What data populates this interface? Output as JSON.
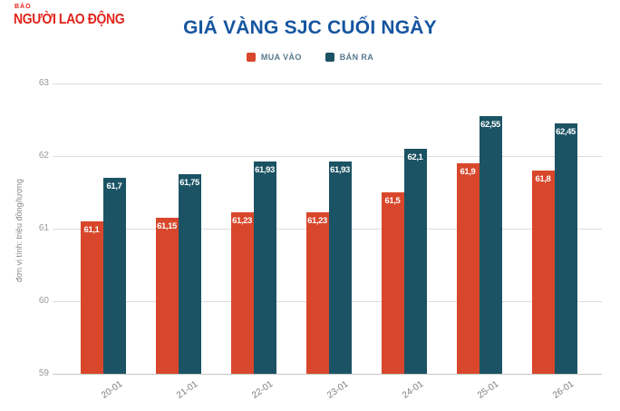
{
  "logo": {
    "top_text": "BÁO",
    "name": "NGƯỜI LAO ĐỘNG"
  },
  "colors": {
    "logo_red": "#e2231a",
    "title_blue": "#1655a0",
    "buy_red": "#d8472b",
    "sell_teal": "#1b5364",
    "grid": "#dcdcdc",
    "axis_text": "#999999"
  },
  "chart_data": {
    "type": "bar",
    "title": "GIÁ VÀNG SJC CUỐI NGÀY",
    "categories": [
      "20-01",
      "21-01",
      "22-01",
      "23-01",
      "24-01",
      "25-01",
      "26-01"
    ],
    "series": [
      {
        "name": "MUA VÀO",
        "color": "#d8472b",
        "values": [
          61.1,
          61.15,
          61.23,
          61.23,
          61.5,
          61.9,
          61.8
        ],
        "labels": [
          "61,1",
          "61,15",
          "61,23",
          "61,23",
          "61,5",
          "61,9",
          "61,8"
        ]
      },
      {
        "name": "BÁN RA",
        "color": "#1b5364",
        "values": [
          61.7,
          61.75,
          61.93,
          61.93,
          62.1,
          62.55,
          62.45
        ],
        "labels": [
          "61,7",
          "61,75",
          "61,93",
          "61,93",
          "62,1",
          "62,55",
          "62,45"
        ]
      }
    ],
    "xlabel": "",
    "ylabel": "đơn vị tính: triệu đồng/lượng",
    "yticks": [
      63,
      62,
      61,
      60,
      59
    ],
    "ylim": [
      59,
      63
    ],
    "grid": true,
    "legend_position": "top"
  }
}
